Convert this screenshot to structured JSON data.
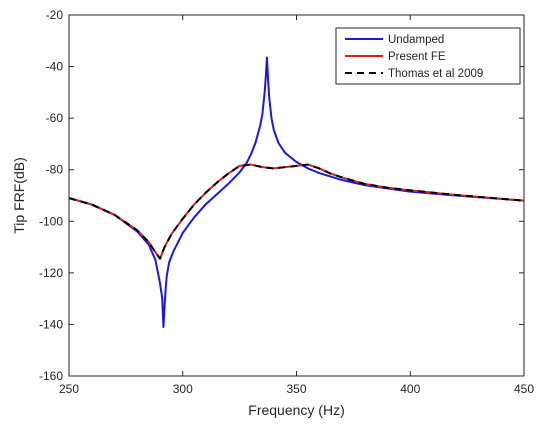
{
  "chart_data": {
    "type": "line",
    "title": "",
    "xlabel": "Frequency (Hz)",
    "ylabel": "Tip FRF(dB)",
    "xlim": [
      250,
      450
    ],
    "ylim": [
      -160,
      -20
    ],
    "xticks": [
      250,
      300,
      350,
      400,
      450
    ],
    "yticks": [
      -160,
      -140,
      -120,
      -100,
      -80,
      -60,
      -40,
      -20
    ],
    "grid": false,
    "legend": "top-right",
    "series": [
      {
        "name": "Undamped",
        "color": "#1a1adb",
        "style": "solid",
        "x": [
          250,
          260,
          270,
          280,
          285,
          288,
          290,
          291,
          291.5,
          292,
          292.5,
          293,
          294,
          296,
          300,
          305,
          310,
          315,
          320,
          325,
          328,
          330,
          332,
          334,
          335,
          336,
          336.5,
          337,
          337.5,
          338,
          339,
          340,
          342,
          345,
          350,
          355,
          360,
          370,
          380,
          400,
          420,
          450
        ],
        "y": [
          -91,
          -93.5,
          -97.5,
          -104,
          -109,
          -115,
          -124,
          -130,
          -141,
          -133,
          -126,
          -121,
          -116,
          -111.5,
          -104.5,
          -98.5,
          -93.5,
          -89.5,
          -85.5,
          -81,
          -77.5,
          -74,
          -69.5,
          -63,
          -58.5,
          -50,
          -44,
          -36.5,
          -45,
          -52,
          -60,
          -64.5,
          -69.5,
          -73.5,
          -77,
          -79.5,
          -81.3,
          -84,
          -86,
          -88.5,
          -90,
          -92
        ]
      },
      {
        "name": "Present FE",
        "color": "#e81919",
        "style": "solid",
        "x": [
          250,
          260,
          270,
          280,
          285,
          288,
          290,
          292,
          295,
          300,
          305,
          310,
          315,
          320,
          325,
          330,
          335,
          340,
          345,
          350,
          355,
          360,
          365,
          370,
          380,
          390,
          400,
          420,
          450
        ],
        "y": [
          -91,
          -93.5,
          -97.5,
          -103.5,
          -108,
          -112,
          -114.5,
          -110,
          -105,
          -99,
          -93.5,
          -89,
          -85,
          -81.5,
          -78.5,
          -78,
          -79,
          -79.5,
          -79,
          -78.5,
          -78,
          -79.5,
          -81.5,
          -83,
          -85.5,
          -87,
          -88,
          -89.8,
          -92
        ]
      },
      {
        "name": "Thomas et al 2009",
        "color": "#000000",
        "style": "dashed",
        "x": [
          250,
          260,
          270,
          280,
          285,
          288,
          290,
          292,
          295,
          300,
          305,
          310,
          315,
          320,
          325,
          330,
          335,
          340,
          345,
          350,
          355,
          360,
          365,
          370,
          380,
          390,
          400,
          420,
          450
        ],
        "y": [
          -91,
          -93.5,
          -97.5,
          -103.5,
          -108,
          -112,
          -114.5,
          -110,
          -105,
          -99,
          -93.5,
          -89,
          -85,
          -81.5,
          -78.5,
          -78,
          -79,
          -79.5,
          -79,
          -78.5,
          -78,
          -79.5,
          -81.5,
          -83,
          -85.5,
          -87,
          -88,
          -89.8,
          -92
        ]
      }
    ]
  }
}
